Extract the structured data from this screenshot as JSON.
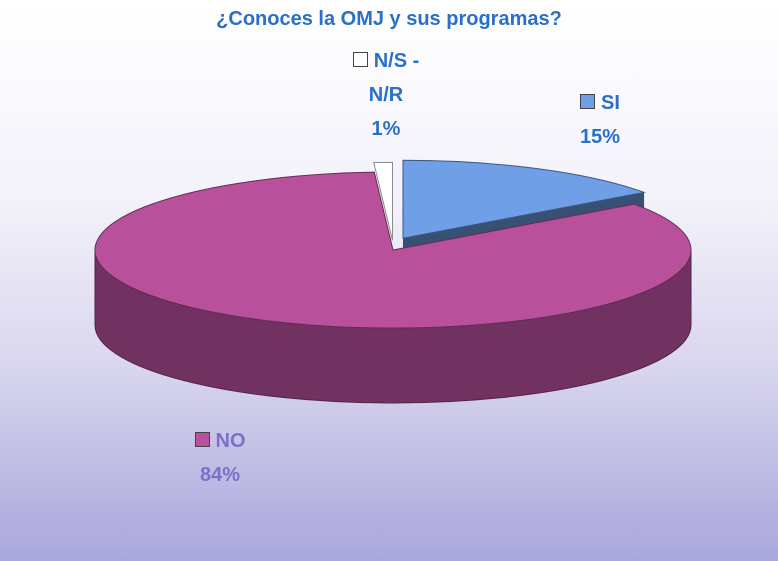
{
  "chart_data": {
    "type": "pie",
    "title": "¿Conoces la OMJ y sus programas?",
    "categories": [
      "SI",
      "NO",
      "N/S - N/R"
    ],
    "values": [
      15,
      84,
      1
    ],
    "value_labels": [
      "15%",
      "84%",
      "1%"
    ],
    "colors": [
      "#6f9fe6",
      "#b8509c",
      "#ffffff"
    ]
  }
}
